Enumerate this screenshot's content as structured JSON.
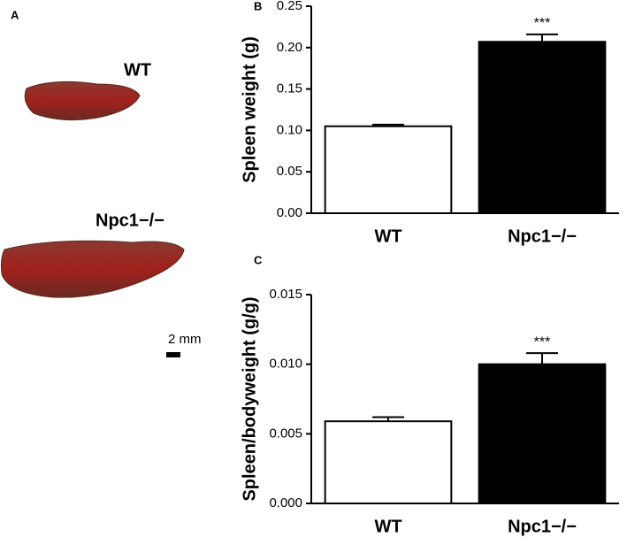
{
  "panel_a": {
    "label": "A",
    "samples": [
      "WT",
      "Npc1−/−"
    ],
    "scale_bar": "2 mm"
  },
  "chart_data": [
    {
      "type": "bar",
      "panel": "B",
      "ylabel": "Spleen weight (g)",
      "categories": [
        "WT",
        "Npc1−/−"
      ],
      "values": [
        0.105,
        0.207
      ],
      "errors": [
        0.002,
        0.009
      ],
      "colors": [
        "#ffffff",
        "#000000"
      ],
      "significance": [
        null,
        "***"
      ],
      "ylim": [
        0,
        0.25
      ],
      "yticks": [
        {
          "value": 0,
          "label": "0.00"
        },
        0.05,
        {
          "value": 0.1,
          "label": "0.10"
        },
        0.15,
        {
          "value": 0.2,
          "label": "0.20"
        },
        0.25
      ]
    },
    {
      "type": "bar",
      "panel": "C",
      "ylabel": "Spleen/bodyweight (g/g)",
      "categories": [
        "WT",
        "Npc1−/−"
      ],
      "values": [
        0.0059,
        0.01
      ],
      "errors": [
        0.0003,
        0.0008
      ],
      "colors": [
        "#ffffff",
        "#000000"
      ],
      "significance": [
        null,
        "***"
      ],
      "ylim": [
        0,
        0.015
      ],
      "yticks": [
        {
          "value": 0,
          "label": "0.000"
        },
        0.005,
        {
          "value": 0.01,
          "label": "0.010"
        },
        0.015
      ]
    }
  ]
}
